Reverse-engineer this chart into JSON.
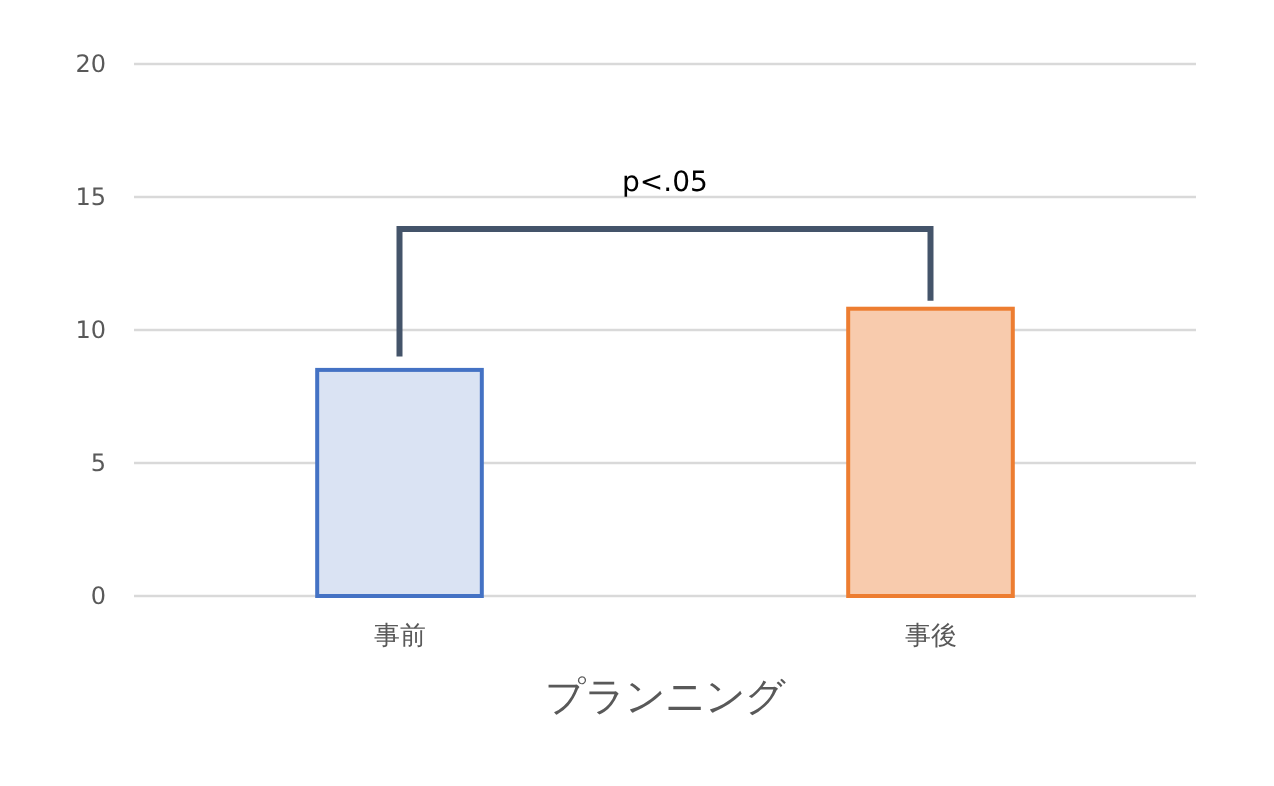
{
  "chart_data": {
    "type": "bar",
    "categories": [
      "事前",
      "事後"
    ],
    "values": [
      8.5,
      10.8
    ],
    "colors": [
      "#dae3f3",
      "#f8cbad"
    ],
    "xlabel": "プランニング",
    "annotations": [
      "p<.05"
    ],
    "ylim": [
      0,
      20
    ],
    "yticks": [
      0,
      5,
      10,
      15,
      20
    ],
    "grid": "y"
  }
}
